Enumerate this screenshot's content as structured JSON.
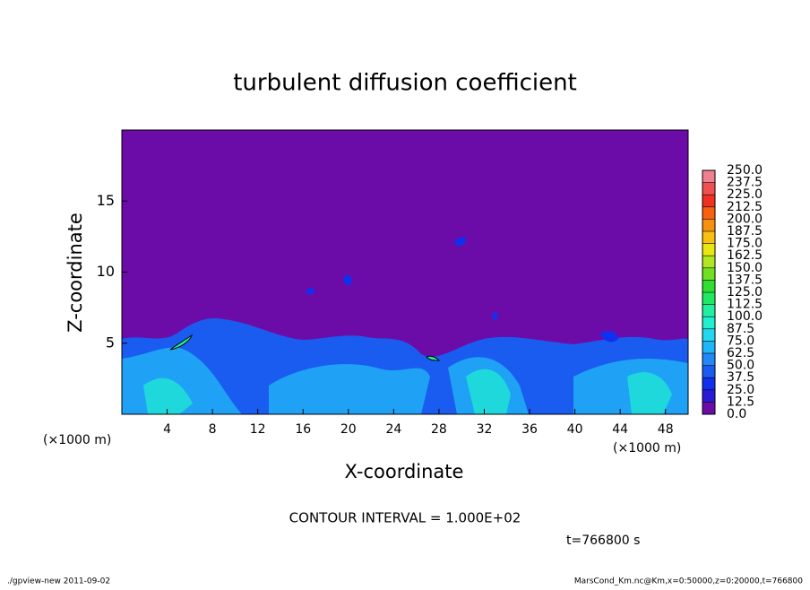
{
  "chart_data": {
    "type": "contour",
    "title": "turbulent diffusion coefficient",
    "x_label": "X-coordinate",
    "y_label": "Z-coordinate",
    "x_unit": "(×1000 m)",
    "y_unit": "(×1000 m)",
    "xlim": [
      0,
      50
    ],
    "xticks": [
      4,
      8,
      12,
      16,
      20,
      24,
      28,
      32,
      36,
      40,
      44,
      48
    ],
    "ylim": [
      0,
      20
    ],
    "yticks": [
      5,
      10,
      15
    ],
    "background_color": "#6c0ca8",
    "colorbar": {
      "levels": [
        {
          "value": 0,
          "label": "0.0"
        },
        12.5,
        {
          "value": 25,
          "label": "25.0"
        },
        37.5,
        {
          "value": 50,
          "label": "50.0"
        },
        62.5,
        {
          "value": 75,
          "label": "75.0"
        },
        87.5,
        {
          "value": 100,
          "label": "100.0"
        },
        112.5,
        {
          "value": 125,
          "label": "125.0"
        },
        137.5,
        {
          "value": 150,
          "label": "150.0"
        },
        162.5,
        {
          "value": 175,
          "label": "175.0"
        },
        187.5,
        {
          "value": 200,
          "label": "200.0"
        },
        212.5,
        {
          "value": 225,
          "label": "225.0"
        },
        237.5,
        {
          "value": 250,
          "label": "250.0"
        }
      ],
      "colors": [
        "#6c0ca8",
        "#2a1ad8",
        "#1030f0",
        "#1a5cf0",
        "#2088f8",
        "#20b4f8",
        "#20d8f0",
        "#20f0d0",
        "#20f0a0",
        "#20e860",
        "#30e030",
        "#70e020",
        "#b0e820",
        "#e8e810",
        "#f8c010",
        "#f89010",
        "#f86010",
        "#f03020",
        "#f05050",
        "#f08090"
      ]
    },
    "annotation": "CONTOUR INTERVAL = 1.000E+02",
    "time_label": "t=766800 s",
    "footer_left": "./gpview-new  2011-09-02",
    "footer_right": "MarsCond_Km.nc@Km,x=0:50000,z=0:20000,t=766800"
  }
}
